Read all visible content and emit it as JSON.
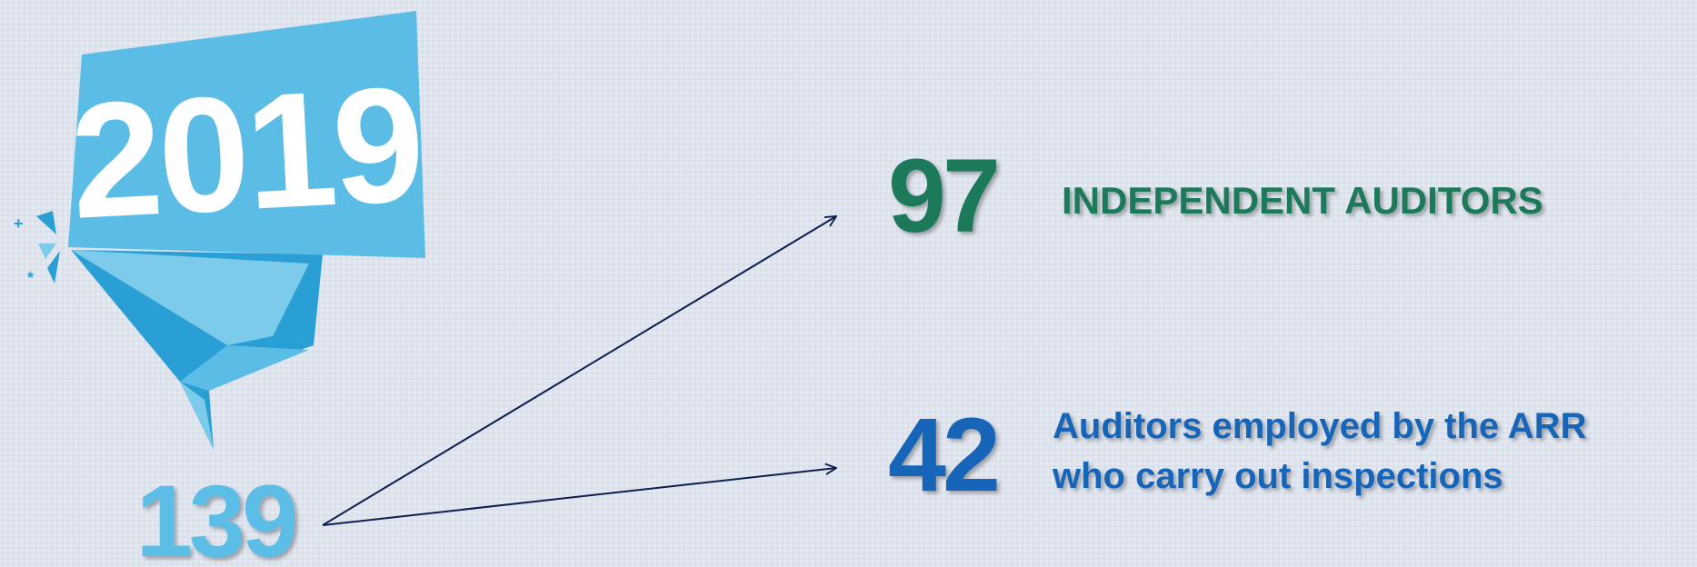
{
  "year": "2019",
  "total": 139,
  "items": [
    {
      "value": 97,
      "label_lines": [
        "INDEPENDENT AUDITORS"
      ]
    },
    {
      "value": 42,
      "label_lines": [
        "Auditors employed by the ARR",
        "who carry out inspections"
      ]
    }
  ]
}
